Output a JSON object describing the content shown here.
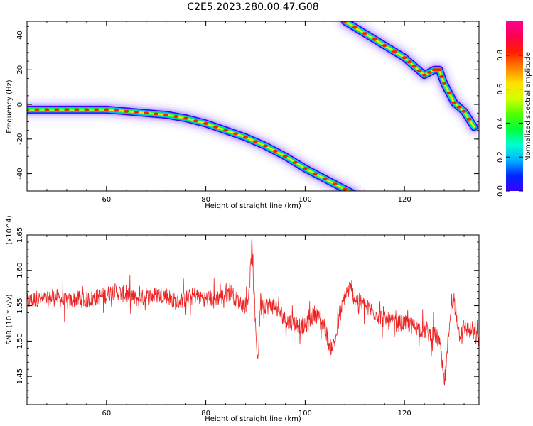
{
  "figure": {
    "title": "C2E5.2023.280.00.47.G08"
  },
  "chart_data": [
    {
      "type": "heatmap",
      "xlabel": "Height of straight line (km)",
      "ylabel": "Frequency (Hz)",
      "xlim": [
        44,
        135
      ],
      "ylim": [
        -50,
        48
      ],
      "xticks": [
        60,
        80,
        100,
        120
      ],
      "yticks": [
        -40,
        -20,
        0,
        20,
        40
      ],
      "colorbar": {
        "label": "Normalized spectral amplitude",
        "range": [
          0,
          1
        ],
        "ticks": [
          "0.0",
          "0.2",
          "0.4",
          "0.6",
          "0.8"
        ],
        "colormap": [
          "#3a00ff",
          "#0026ff",
          "#00b4ff",
          "#00ffd0",
          "#00ff40",
          "#55ff00",
          "#d4ff00",
          "#ffe000",
          "#ff8000",
          "#ff2000",
          "#ff0050",
          "#ff0090"
        ]
      },
      "series": [
        {
          "x": [
            44,
            48,
            52,
            56,
            60,
            64,
            68,
            72,
            76,
            80,
            84,
            88,
            92,
            96,
            100,
            104,
            108,
            110
          ],
          "y": [
            -3,
            -3,
            -3,
            -3,
            -3,
            -4,
            -5,
            -6,
            -8,
            -11,
            -15,
            -19,
            -24,
            -30,
            -37,
            -43,
            -49,
            -52
          ]
        },
        {
          "x": [
            108,
            112,
            116,
            120,
            122,
            124,
            126,
            127,
            128,
            130,
            132,
            134
          ],
          "y": [
            48,
            41,
            34,
            27,
            22,
            17,
            20,
            20,
            12,
            1,
            -4,
            -13
          ]
        }
      ]
    },
    {
      "type": "line",
      "xlabel": "Height of straight line (km)",
      "ylabel": "SNR (10 * v/v)",
      "yscale_label": "(x10^4)",
      "xlim": [
        44,
        135
      ],
      "ylim": [
        1.41,
        1.65
      ],
      "xticks": [
        60,
        80,
        100,
        120
      ],
      "yticks": [
        1.45,
        1.5,
        1.55,
        1.6,
        1.65
      ],
      "line_color": "#ee2222",
      "series": [
        {
          "x": [
            44,
            46,
            48,
            50,
            52,
            54,
            56,
            58,
            60,
            61,
            62,
            64,
            66,
            68,
            70,
            72,
            74,
            76,
            78,
            80,
            82,
            84,
            85,
            86,
            87,
            88,
            88.5,
            89,
            89.3,
            89.6,
            90,
            90.5,
            91,
            92,
            94,
            96,
            98,
            100,
            102,
            104,
            105,
            106,
            107,
            108,
            109,
            110,
            112,
            114,
            116,
            118,
            120,
            122,
            124,
            125,
            126,
            127,
            127.5,
            128,
            128.5,
            129,
            130,
            131,
            132,
            134,
            135
          ],
          "y": [
            1.555,
            1.56,
            1.558,
            1.562,
            1.555,
            1.56,
            1.558,
            1.562,
            1.565,
            1.57,
            1.57,
            1.565,
            1.56,
            1.562,
            1.565,
            1.565,
            1.555,
            1.56,
            1.565,
            1.56,
            1.56,
            1.565,
            1.57,
            1.56,
            1.555,
            1.55,
            1.56,
            1.6,
            1.64,
            1.58,
            1.52,
            1.47,
            1.56,
            1.55,
            1.55,
            1.53,
            1.525,
            1.52,
            1.54,
            1.52,
            1.49,
            1.5,
            1.535,
            1.565,
            1.575,
            1.56,
            1.55,
            1.54,
            1.53,
            1.525,
            1.525,
            1.52,
            1.515,
            1.51,
            1.51,
            1.5,
            1.47,
            1.44,
            1.47,
            1.53,
            1.56,
            1.51,
            1.52,
            1.51,
            1.5
          ]
        }
      ]
    }
  ]
}
